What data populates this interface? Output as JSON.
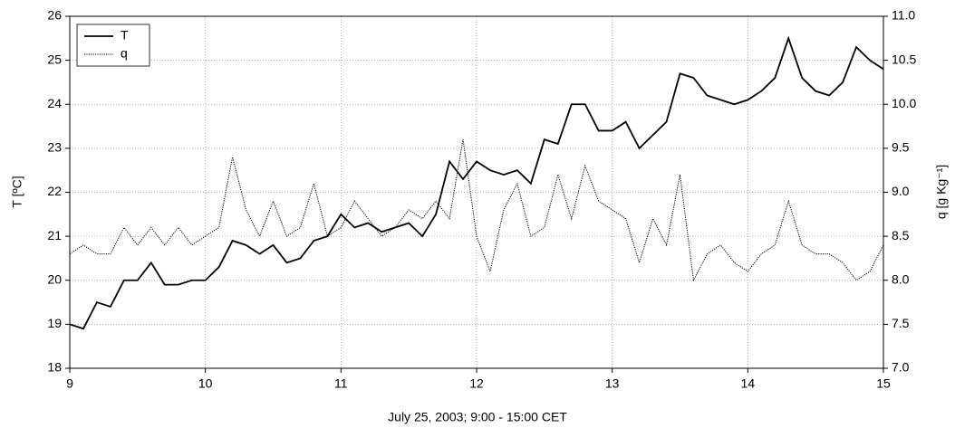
{
  "chart_data": {
    "type": "line",
    "x_label": "July 25, 2003; 9:00 - 15:00 CET",
    "y_label": "T [ºC]",
    "y2_label": "q [g Kg⁻¹]",
    "x": [
      9.0,
      9.1,
      9.2,
      9.3,
      9.4,
      9.5,
      9.6,
      9.7,
      9.8,
      9.9,
      10.0,
      10.1,
      10.2,
      10.3,
      10.4,
      10.5,
      10.6,
      10.7,
      10.8,
      10.9,
      11.0,
      11.1,
      11.2,
      11.3,
      11.4,
      11.5,
      11.6,
      11.7,
      11.8,
      11.9,
      12.0,
      12.1,
      12.2,
      12.3,
      12.4,
      12.5,
      12.6,
      12.7,
      12.8,
      12.9,
      13.0,
      13.1,
      13.2,
      13.3,
      13.4,
      13.5,
      13.6,
      13.7,
      13.8,
      13.9,
      14.0,
      14.1,
      14.2,
      14.3,
      14.4,
      14.5,
      14.6,
      14.7,
      14.8,
      14.9,
      15.0
    ],
    "series": [
      {
        "name": "T",
        "color": "#000000",
        "style": "solid",
        "values": [
          19.0,
          18.9,
          19.5,
          19.4,
          20.0,
          20.0,
          20.4,
          19.9,
          19.9,
          20.0,
          20.0,
          20.3,
          20.9,
          20.8,
          20.6,
          20.8,
          20.4,
          20.5,
          20.9,
          21.0,
          21.5,
          21.2,
          21.3,
          21.1,
          21.2,
          21.3,
          21.0,
          21.5,
          22.7,
          22.3,
          22.7,
          22.5,
          22.4,
          22.5,
          22.2,
          23.2,
          23.1,
          24.0,
          24.0,
          23.4,
          23.4,
          23.6,
          23.0,
          23.3,
          23.6,
          24.7,
          24.6,
          24.2,
          24.1,
          24.0,
          24.1,
          24.3,
          24.6,
          25.5,
          24.6,
          24.3,
          24.2,
          24.5,
          25.3,
          25.0,
          24.8
        ]
      },
      {
        "name": "q",
        "color": "#000000",
        "style": "dotted",
        "axis": "y2",
        "values": [
          8.3,
          8.4,
          8.3,
          8.3,
          8.6,
          8.4,
          8.6,
          8.4,
          8.6,
          8.4,
          8.5,
          8.6,
          9.4,
          8.8,
          8.5,
          8.9,
          8.5,
          8.6,
          9.1,
          8.5,
          8.6,
          8.9,
          8.7,
          8.5,
          8.6,
          8.8,
          8.7,
          8.9,
          8.7,
          9.6,
          8.5,
          8.1,
          8.8,
          9.1,
          8.5,
          8.6,
          9.2,
          8.7,
          9.3,
          8.9,
          8.8,
          8.7,
          8.2,
          8.7,
          8.4,
          9.2,
          8.0,
          8.3,
          8.4,
          8.2,
          8.1,
          8.3,
          8.4,
          8.9,
          8.4,
          8.3,
          8.3,
          8.2,
          8.0,
          8.1,
          8.4
        ]
      }
    ],
    "xlim": [
      9,
      15
    ],
    "xticks": [
      9,
      10,
      11,
      12,
      13,
      14,
      15
    ],
    "ylim": [
      18,
      26
    ],
    "yticks": [
      18,
      19,
      20,
      21,
      22,
      23,
      24,
      25,
      26
    ],
    "y2lim": [
      7,
      11
    ],
    "y2ticks": [
      {
        "value": 7,
        "label": "7.0"
      },
      {
        "value": 7.5,
        "label": "7.5"
      },
      {
        "value": 8,
        "label": "8.0"
      },
      {
        "value": 8.5,
        "label": "8.5"
      },
      {
        "value": 9,
        "label": "9.0"
      },
      {
        "value": 9.5,
        "label": "9.5"
      },
      {
        "value": 10,
        "label": "10.0"
      },
      {
        "value": 10.5,
        "label": "10.5"
      },
      {
        "value": 11,
        "label": "11.0"
      }
    ],
    "grid": true,
    "legend": "top-left"
  }
}
